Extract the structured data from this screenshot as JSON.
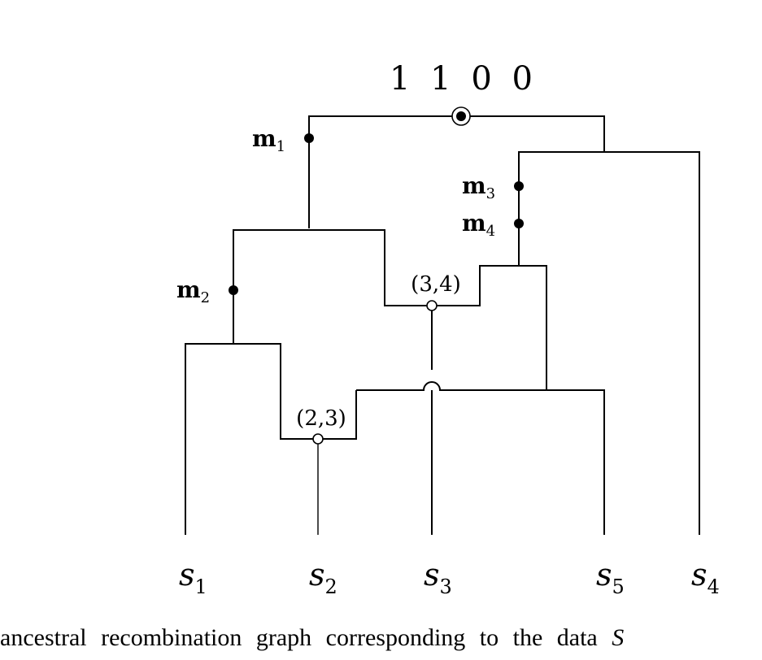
{
  "root_sequence": "1 1 0 0",
  "mutations": {
    "m1": {
      "main": "m",
      "sub": "1"
    },
    "m2": {
      "main": "m",
      "sub": "2"
    },
    "m3": {
      "main": "m",
      "sub": "3"
    },
    "m4": {
      "main": "m",
      "sub": "4"
    }
  },
  "recombinations": {
    "r34": "(3,4)",
    "r23": "(2,3)"
  },
  "leaves": {
    "s1": {
      "main": "s",
      "sub": "1"
    },
    "s2": {
      "main": "s",
      "sub": "2"
    },
    "s3": {
      "main": "s",
      "sub": "3"
    },
    "s5": {
      "main": "s",
      "sub": "5"
    },
    "s4": {
      "main": "s",
      "sub": "4"
    }
  },
  "caption": {
    "text": "ancestral recombination graph corresponding to the data",
    "variable": "S"
  }
}
